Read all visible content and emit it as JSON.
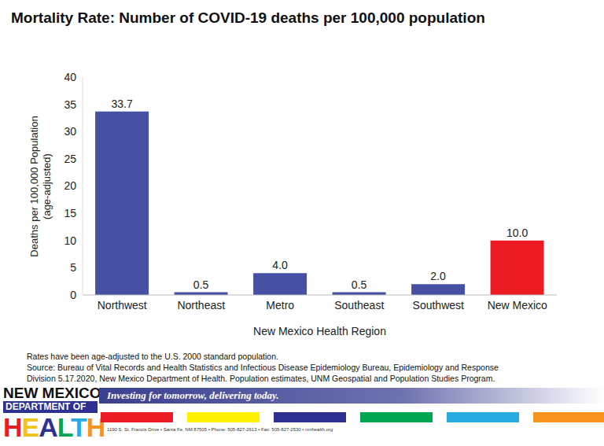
{
  "chart_data": {
    "type": "bar",
    "title": "Mortality Rate: Number of COVID-19 deaths per 100,000 population",
    "xlabel": "New Mexico Health Region",
    "ylabel": [
      "Deaths per 100,000 Population",
      "(age-adjusted)"
    ],
    "categories": [
      "Northwest",
      "Northeast",
      "Metro",
      "Southeast",
      "Southwest",
      "New Mexico"
    ],
    "values": [
      33.7,
      0.5,
      4.0,
      0.5,
      2.0,
      10.0
    ],
    "value_labels": [
      "33.7",
      "0.5",
      "4.0",
      "0.5",
      "2.0",
      "10.0"
    ],
    "colors": [
      "#4651a3",
      "#4651a3",
      "#4651a3",
      "#4651a3",
      "#4651a3",
      "#ed1c24"
    ],
    "ylim": [
      0,
      40
    ],
    "yticks": [
      0,
      5,
      10,
      15,
      20,
      25,
      30,
      35,
      40
    ],
    "grid": false,
    "data_labels": true,
    "notes": [
      "Rates have been age-adjusted to the U.S. 2000 standard population.",
      "Source: Bureau of Vital Records and Health Statistics and Infectious Disease Epidemiology Bureau, Epidemiology and Response",
      "Division 5.17.2020, New Mexico Department of Health. Population estimates, UNM Geospatial and Population Studies Program."
    ],
    "footer": {
      "logo": [
        "NEW MEXICO",
        "DEPARTMENT OF",
        "HEALTH"
      ],
      "tagline": "Investing for tomorrow, delivering today.",
      "address": "1190 S. St. Francis Drive • Santa Fe, NM 87505 • Phone: 505-827-2613 • Fax: 505-827-2530 • nmhealth.org"
    }
  }
}
